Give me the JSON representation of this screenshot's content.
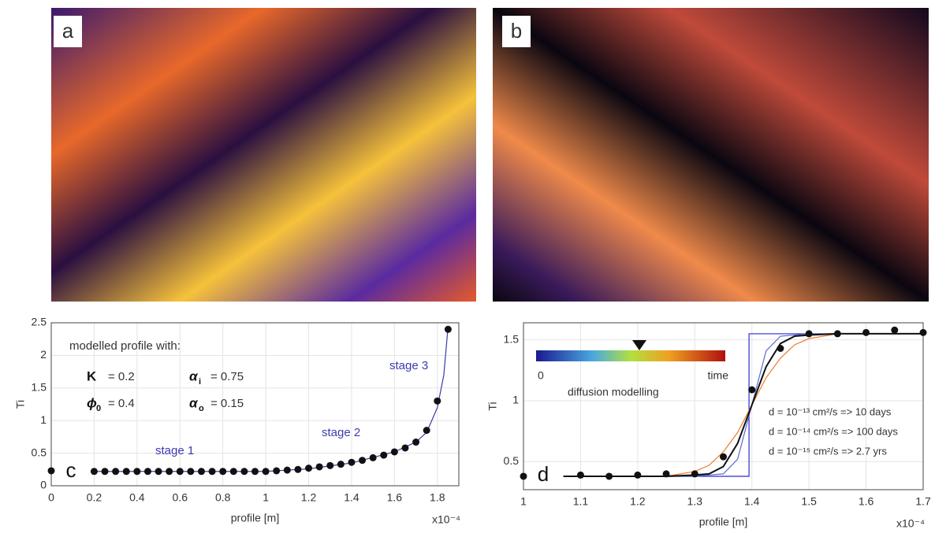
{
  "image_panels": [
    {
      "label": "a"
    },
    {
      "label": "b"
    }
  ],
  "chart_data": [
    {
      "type": "line",
      "panel_label": "c",
      "x_label": "profile [m]",
      "y_label": "Ti",
      "x_scale_label": "x10⁻⁴",
      "xlim": [
        0,
        1.9
      ],
      "xticks": [
        0,
        0.2,
        0.4,
        0.6,
        0.8,
        1,
        1.2,
        1.4,
        1.6,
        1.8
      ],
      "ylim": [
        0,
        2.5
      ],
      "yticks": [
        0,
        0.5,
        1,
        1.5,
        2,
        2.5
      ],
      "grid": true,
      "annotations": [
        "modelled profile with:",
        "stage 1",
        "stage 2",
        "stage 3"
      ],
      "params": [
        {
          "symbol": "K",
          "text": "= 0.2"
        },
        {
          "symbol": "α",
          "sub": "i",
          "text": "= 0.75"
        },
        {
          "symbol": "ϕ",
          "sub": "0",
          "text": "= 0.4"
        },
        {
          "symbol": "α",
          "sub": "o",
          "text": "= 0.15"
        }
      ],
      "series": [
        {
          "style": "line",
          "color": "#3b3bb0",
          "x": [
            0.2,
            0.4,
            0.6,
            0.8,
            1.0,
            1.2,
            1.4,
            1.6,
            1.7,
            1.75,
            1.8,
            1.83,
            1.85
          ],
          "values": [
            0.22,
            0.22,
            0.22,
            0.22,
            0.22,
            0.26,
            0.35,
            0.52,
            0.67,
            0.82,
            1.2,
            1.7,
            2.45
          ]
        },
        {
          "style": "markers",
          "color": "#111111",
          "x": [
            0,
            0.2,
            0.25,
            0.3,
            0.35,
            0.4,
            0.45,
            0.5,
            0.55,
            0.6,
            0.65,
            0.7,
            0.75,
            0.8,
            0.85,
            0.9,
            0.95,
            1.0,
            1.05,
            1.1,
            1.15,
            1.2,
            1.25,
            1.3,
            1.35,
            1.4,
            1.45,
            1.5,
            1.55,
            1.6,
            1.65,
            1.7,
            1.75,
            1.8,
            1.85
          ],
          "values": [
            0.23,
            0.22,
            0.22,
            0.22,
            0.22,
            0.22,
            0.22,
            0.22,
            0.22,
            0.22,
            0.22,
            0.22,
            0.22,
            0.22,
            0.22,
            0.22,
            0.22,
            0.22,
            0.23,
            0.24,
            0.25,
            0.27,
            0.29,
            0.31,
            0.33,
            0.36,
            0.39,
            0.43,
            0.47,
            0.52,
            0.58,
            0.67,
            0.85,
            1.3,
            2.4
          ]
        }
      ]
    },
    {
      "type": "line",
      "panel_label": "d",
      "x_label": "profile [m]",
      "y_label": "Ti",
      "x_scale_label": "x10⁻⁴",
      "xlim": [
        1,
        1.7
      ],
      "xticks": [
        1,
        1.1,
        1.2,
        1.3,
        1.4,
        1.5,
        1.6,
        1.7
      ],
      "ylim": [
        0.27,
        1.64
      ],
      "yticks": [
        0.5,
        1,
        1.5
      ],
      "grid": true,
      "colorbar": {
        "min_label": "0",
        "max_label": "time",
        "title": "diffusion modelling"
      },
      "annotations": [
        "d = 10⁻¹³ cm²/s  => 10 days",
        "d = 10⁻¹⁴ cm²/s  => 100 days",
        "d = 10⁻¹⁵ cm²/s  => 2.7 yrs"
      ],
      "series": [
        {
          "style": "line",
          "color": "#2a2ad0",
          "x": [
            1.07,
            1.395,
            1.395,
            1.7
          ],
          "values": [
            0.38,
            0.38,
            1.55,
            1.55
          ]
        },
        {
          "style": "line",
          "color": "#5a6ad8",
          "x": [
            1.07,
            1.3,
            1.35,
            1.375,
            1.4,
            1.425,
            1.45,
            1.5,
            1.7
          ],
          "values": [
            0.38,
            0.38,
            0.4,
            0.52,
            0.965,
            1.41,
            1.53,
            1.55,
            1.55
          ]
        },
        {
          "style": "line",
          "color": "#f07a2a",
          "x": [
            1.07,
            1.25,
            1.3,
            1.325,
            1.35,
            1.375,
            1.4,
            1.425,
            1.45,
            1.475,
            1.5,
            1.55,
            1.7
          ],
          "values": [
            0.38,
            0.38,
            0.42,
            0.47,
            0.58,
            0.74,
            0.965,
            1.19,
            1.35,
            1.46,
            1.51,
            1.55,
            1.55
          ]
        },
        {
          "style": "line",
          "color": "#111111",
          "x": [
            1.07,
            1.25,
            1.3,
            1.325,
            1.35,
            1.375,
            1.4,
            1.425,
            1.45,
            1.475,
            1.5,
            1.55,
            1.7
          ],
          "values": [
            0.38,
            0.38,
            0.39,
            0.4,
            0.46,
            0.65,
            0.965,
            1.28,
            1.47,
            1.53,
            1.54,
            1.55,
            1.55
          ]
        },
        {
          "style": "markers",
          "color": "#111111",
          "x": [
            1.0,
            1.1,
            1.15,
            1.2,
            1.25,
            1.3,
            1.35,
            1.4,
            1.45,
            1.5,
            1.55,
            1.6,
            1.65,
            1.7
          ],
          "values": [
            0.38,
            0.39,
            0.38,
            0.39,
            0.4,
            0.4,
            0.54,
            1.09,
            1.43,
            1.55,
            1.55,
            1.56,
            1.58,
            1.56
          ]
        }
      ]
    }
  ]
}
